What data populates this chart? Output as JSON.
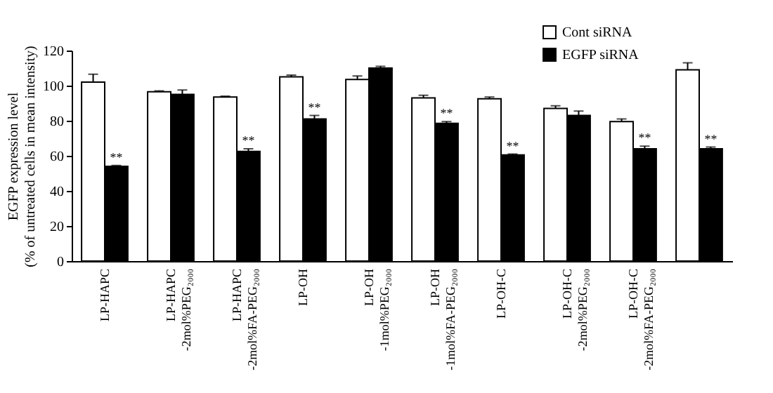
{
  "chart_data": {
    "type": "bar",
    "ylabel": "EGFP expression level\n(% of untreated cells in mean intensity)",
    "categories": [
      "LP-HAPC",
      "LP-HAPC\n-2mol%PEG₂₀₀₀",
      "LP-HAPC\n-2mol%FA-PEG₂₀₀₀",
      "LP-OH",
      "LP-OH\n-1mol%PEG₂₀₀₀",
      "LP-OH\n-1mol%FA-PEG₂₀₀₀",
      "LP-OH-C",
      "LP-OH-C\n-2mol%PEG₂₀₀₀",
      "LP-OH-C\n-2mol%FA-PEG₂₀₀₀",
      null
    ],
    "series": [
      {
        "name": "Cont siRNA",
        "color": "#ffffff",
        "values": [
          102,
          96.5,
          93.5,
          105,
          103.5,
          93,
          92.5,
          87,
          79.5,
          109
        ],
        "errors": [
          4.5,
          0.5,
          0.5,
          1,
          2,
          1.5,
          1,
          1.5,
          1.5,
          4
        ]
      },
      {
        "name": "EGFP siRNA",
        "color": "#000000",
        "values": [
          54,
          95,
          62.5,
          81,
          110,
          78.5,
          60.5,
          83,
          64,
          64
        ],
        "errors": [
          0.5,
          2.5,
          1.5,
          2,
          1,
          1,
          0.5,
          2.5,
          1.5,
          1
        ],
        "value_labels": [
          "**",
          null,
          "**",
          "**",
          null,
          "**",
          "**",
          null,
          "**",
          "**"
        ]
      }
    ],
    "ylim": [
      0,
      120
    ],
    "yticks": [
      0,
      20,
      40,
      60,
      80,
      100,
      120
    ],
    "grid": false,
    "legend": "top right"
  }
}
